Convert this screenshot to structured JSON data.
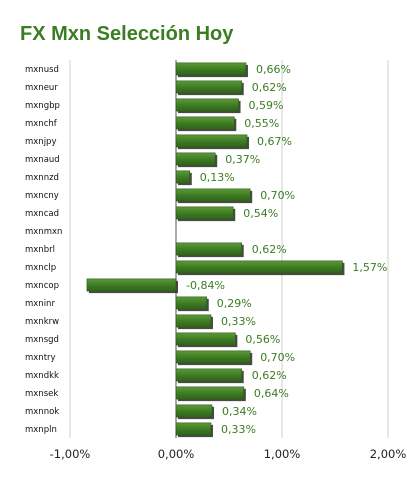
{
  "chart_data": {
    "type": "bar",
    "orientation": "horizontal",
    "title": "FX Mxn Selección Hoy",
    "categories": [
      "mxnusd",
      "mxneur",
      "mxngbp",
      "mxnchf",
      "mxnjpy",
      "mxnaud",
      "mxnnzd",
      "mxncny",
      "mxncad",
      "mxnmxn",
      "mxnbrl",
      "mxnclp",
      "mxncop",
      "mxninr",
      "mxnkrw",
      "mxnsgd",
      "mxntry",
      "mxndkk",
      "mxnsek",
      "mxnnok",
      "mxnpln"
    ],
    "values": [
      0.66,
      0.62,
      0.59,
      0.55,
      0.67,
      0.37,
      0.13,
      0.7,
      0.54,
      null,
      0.62,
      1.57,
      -0.84,
      0.29,
      0.33,
      0.56,
      0.7,
      0.62,
      0.64,
      0.34,
      0.33
    ],
    "value_labels": [
      "0,66%",
      "0,62%",
      "0,59%",
      "0,55%",
      "0,67%",
      "0,37%",
      "0,13%",
      "0,70%",
      "0,54%",
      "",
      "0,62%",
      "1,57%",
      "-0,84%",
      "0,29%",
      "0,33%",
      "0,56%",
      "0,70%",
      "0,62%",
      "0,64%",
      "0,34%",
      "0,33%"
    ],
    "xlim": [
      -1.0,
      2.0
    ],
    "x_ticks": [
      -1.0,
      0.0,
      1.0,
      2.0
    ],
    "x_tick_labels": [
      "-1,00%",
      "0,00%",
      "1,00%",
      "2,00%"
    ],
    "grid": true,
    "legend": "none",
    "colors": {
      "bar": "#3d7a22",
      "bar_highlight": "#5c9a3a",
      "bar_shadow": "#2a2a2a",
      "title": "#3a7d22",
      "value_label": "#3a7d22",
      "grid": "#cfcfcf"
    }
  }
}
